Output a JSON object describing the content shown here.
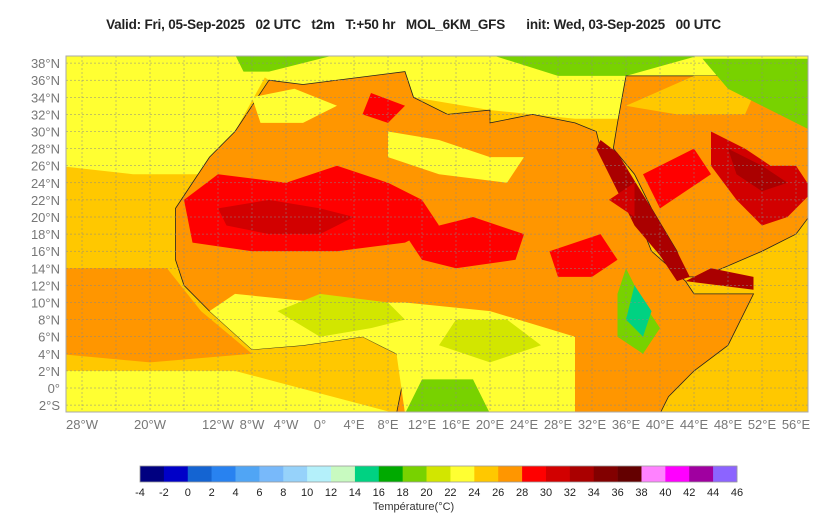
{
  "header": {
    "title": "Valid: Fri, 05-Sep-2025   02 UTC   t2m   T:+50 hr   MOL_6KM_GFS      init: Wed, 03-Sep-2025   00 UTC"
  },
  "map": {
    "variable": "t2m",
    "lat_labels": [
      "38°N",
      "36°N",
      "34°N",
      "32°N",
      "30°N",
      "28°N",
      "26°N",
      "24°N",
      "22°N",
      "20°N",
      "18°N",
      "16°N",
      "14°N",
      "12°N",
      "10°N",
      "8°N",
      "6°N",
      "4°N",
      "2°N",
      "0°",
      "2°S"
    ],
    "lat_values": [
      38,
      36,
      34,
      32,
      30,
      28,
      26,
      24,
      22,
      20,
      18,
      16,
      14,
      12,
      10,
      8,
      6,
      4,
      2,
      0,
      -2
    ],
    "lon_labels": [
      "28°W",
      "20°W",
      "12°W",
      "8°W",
      "4°W",
      "0°",
      "4°E",
      "8°E",
      "12°E",
      "16°E",
      "20°E",
      "24°E",
      "28°E",
      "32°E",
      "36°E",
      "40°E",
      "44°E",
      "48°E",
      "52°E",
      "56°E"
    ],
    "lon_values": [
      -28,
      -20,
      -12,
      -8,
      -4,
      0,
      4,
      8,
      12,
      16,
      20,
      24,
      28,
      32,
      36,
      40,
      44,
      48,
      52,
      56
    ]
  },
  "colorbar": {
    "label": "Température(°C)",
    "ticks": [
      "-4",
      "-2",
      "0",
      "2",
      "4",
      "6",
      "8",
      "10",
      "12",
      "14",
      "16",
      "18",
      "20",
      "22",
      "24",
      "26",
      "28",
      "30",
      "32",
      "34",
      "36",
      "38",
      "40",
      "42",
      "44",
      "46"
    ],
    "colors": [
      "#000080",
      "#0000c8",
      "#1464d2",
      "#2882f0",
      "#50a5f5",
      "#78b9fa",
      "#96d2fa",
      "#b4f0fa",
      "#c8fac0",
      "#00d282",
      "#00aa00",
      "#78d200",
      "#d2e600",
      "#ffff32",
      "#ffc800",
      "#ff9600",
      "#ff0000",
      "#d20000",
      "#aa0000",
      "#820000",
      "#640000",
      "#ff82ff",
      "#ff00ff",
      "#a000a0",
      "#8c64ff"
    ]
  }
}
